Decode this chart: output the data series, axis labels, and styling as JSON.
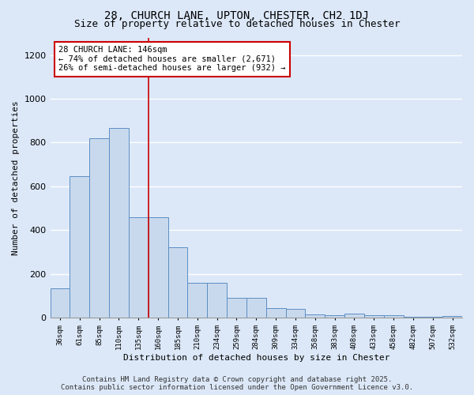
{
  "title": "28, CHURCH LANE, UPTON, CHESTER, CH2 1DJ",
  "subtitle": "Size of property relative to detached houses in Chester",
  "xlabel": "Distribution of detached houses by size in Chester",
  "ylabel": "Number of detached properties",
  "categories": [
    "36sqm",
    "61sqm",
    "85sqm",
    "110sqm",
    "135sqm",
    "160sqm",
    "185sqm",
    "210sqm",
    "234sqm",
    "259sqm",
    "284sqm",
    "309sqm",
    "334sqm",
    "358sqm",
    "383sqm",
    "408sqm",
    "433sqm",
    "458sqm",
    "482sqm",
    "507sqm",
    "532sqm"
  ],
  "values": [
    135,
    645,
    820,
    865,
    460,
    460,
    320,
    160,
    160,
    90,
    90,
    45,
    40,
    15,
    12,
    20,
    12,
    10,
    5,
    3,
    8
  ],
  "bar_color": "#c9d9ed",
  "bar_edge_color": "#5b8ec4",
  "vline_x": 4.5,
  "vline_color": "#cc0000",
  "annotation_text": "28 CHURCH LANE: 146sqm\n← 74% of detached houses are smaller (2,671)\n26% of semi-detached houses are larger (932) →",
  "annotation_box_color": "#ffffff",
  "annotation_box_edge": "#cc0000",
  "ylim": [
    0,
    1280
  ],
  "yticks": [
    0,
    200,
    400,
    600,
    800,
    1000,
    1200
  ],
  "background_color": "#dce8f8",
  "grid_color": "#ffffff",
  "footer_line1": "Contains HM Land Registry data © Crown copyright and database right 2025.",
  "footer_line2": "Contains public sector information licensed under the Open Government Licence v3.0.",
  "title_fontsize": 10,
  "subtitle_fontsize": 9,
  "annot_fontsize": 7.5,
  "footer_fontsize": 6.5,
  "ylabel_fontsize": 8,
  "xlabel_fontsize": 8,
  "ytick_fontsize": 8,
  "xtick_fontsize": 6.5
}
